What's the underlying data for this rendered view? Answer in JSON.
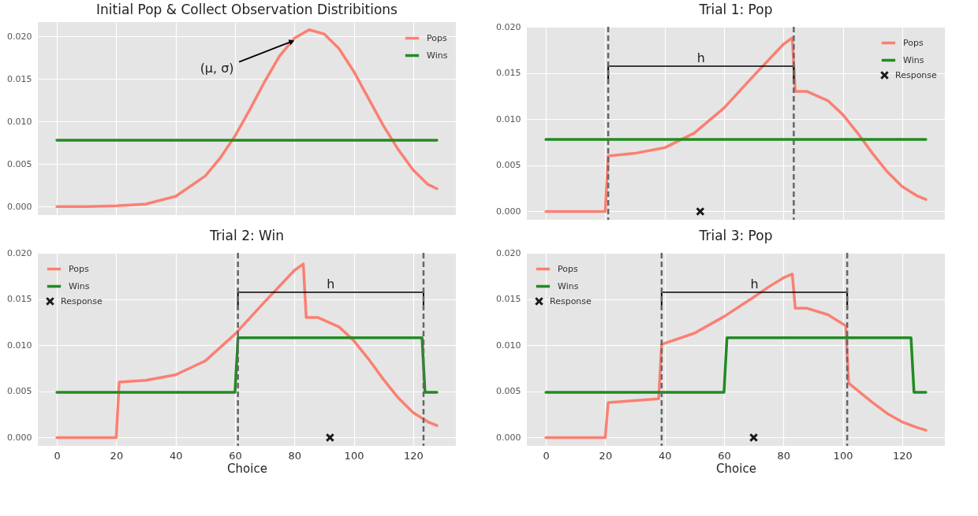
{
  "chart_data": [
    {
      "type": "line",
      "title": "Initial Pop & Collect Observation Distribitions",
      "xlim": [
        -6.4,
        134.4
      ],
      "xticks": [
        0,
        20,
        40,
        60,
        80,
        100,
        120
      ],
      "ylim": [
        -0.001,
        0.0217
      ],
      "yticks": [
        {
          "value": 0,
          "label": "0.000"
        },
        {
          "value": 0.005,
          "label": "0.005"
        },
        {
          "value": 0.01,
          "label": "0.010"
        },
        {
          "value": 0.015,
          "label": "0.015"
        },
        {
          "value": 0.02,
          "label": "0.020"
        }
      ],
      "tick_labels": "y",
      "grid": true,
      "legend": "top right",
      "series": [
        {
          "name": "Pops",
          "color": "#fa8072",
          "x": [
            0,
            10,
            20,
            30,
            40,
            50,
            55,
            60,
            65,
            70,
            75,
            80,
            85,
            90,
            95,
            100,
            105,
            110,
            115,
            120,
            125,
            128
          ],
          "values": [
            0.0,
            0.0,
            0.0001,
            0.0003,
            0.0012,
            0.0036,
            0.0057,
            0.0083,
            0.0114,
            0.0147,
            0.0177,
            0.0198,
            0.0208,
            0.0203,
            0.0186,
            0.0159,
            0.0127,
            0.0095,
            0.0067,
            0.0043,
            0.0026,
            0.0021
          ]
        },
        {
          "name": "Wins",
          "color": "#228b22",
          "x": [
            0,
            128
          ],
          "values": [
            0.0078,
            0.0078
          ]
        }
      ],
      "annotations": [
        {
          "text": "(μ, σ)",
          "x": 80.5,
          "y": 0.0196
        }
      ]
    },
    {
      "type": "line",
      "title": "Trial 1: Pop",
      "xlim": [
        -6.4,
        134.4
      ],
      "xticks": [
        0,
        20,
        40,
        60,
        80,
        100,
        120
      ],
      "ylim": [
        -0.0009,
        0.02
      ],
      "yticks": [
        {
          "value": 0,
          "label": "0.000"
        },
        {
          "value": 0.005,
          "label": "0.005"
        },
        {
          "value": 0.01,
          "label": "0.010"
        },
        {
          "value": 0.015,
          "label": "0.015"
        },
        {
          "value": 0.02,
          "label": "0.020"
        }
      ],
      "tick_labels": "y",
      "grid": true,
      "legend": "top right",
      "series": [
        {
          "name": "Pops",
          "color": "#fa8072",
          "x": [
            0,
            20,
            21,
            30,
            40,
            50,
            60,
            70,
            75,
            80,
            83,
            84,
            88,
            95,
            100,
            105,
            110,
            115,
            120,
            125,
            128
          ],
          "values": [
            0.0,
            0.0,
            0.006,
            0.0063,
            0.0069,
            0.0085,
            0.0112,
            0.0147,
            0.0164,
            0.0181,
            0.0188,
            0.013,
            0.013,
            0.012,
            0.0105,
            0.0085,
            0.0063,
            0.0043,
            0.0027,
            0.0017,
            0.0013
          ]
        },
        {
          "name": "Wins",
          "color": "#228b22",
          "x": [
            0,
            128
          ],
          "values": [
            0.0078,
            0.0078
          ]
        },
        {
          "name": "Response",
          "type": "scatter",
          "marker": "cross",
          "color": "#1a1a1a",
          "x": [
            52
          ],
          "values": [
            0.0
          ]
        }
      ],
      "ref_lines": [
        {
          "axis": "x",
          "value": 21,
          "color": "#666666",
          "line_style": "dashed"
        },
        {
          "axis": "x",
          "value": 83.5,
          "color": "#666666",
          "line_style": "dashed"
        }
      ],
      "annotations": [
        "h"
      ]
    },
    {
      "type": "line",
      "title": "Trial 2: Win",
      "xlabel": "Choice",
      "xlim": [
        -6.4,
        134.4
      ],
      "xticks": [
        0,
        20,
        40,
        60,
        80,
        100,
        120
      ],
      "ylim": [
        -0.0009,
        0.02
      ],
      "yticks": [
        {
          "value": 0,
          "label": "0.000"
        },
        {
          "value": 0.005,
          "label": "0.005"
        },
        {
          "value": 0.01,
          "label": "0.010"
        },
        {
          "value": 0.015,
          "label": "0.015"
        },
        {
          "value": 0.02,
          "label": "0.020"
        }
      ],
      "grid": true,
      "legend": "top left",
      "series": [
        {
          "name": "Pops",
          "color": "#fa8072",
          "x": [
            0,
            20,
            21,
            30,
            40,
            50,
            60,
            70,
            75,
            80,
            83,
            84,
            88,
            95,
            100,
            105,
            110,
            115,
            120,
            125,
            128
          ],
          "values": [
            0.0,
            0.0,
            0.006,
            0.0062,
            0.0068,
            0.0083,
            0.0112,
            0.0147,
            0.0164,
            0.0181,
            0.0188,
            0.013,
            0.013,
            0.012,
            0.0105,
            0.0085,
            0.0063,
            0.0043,
            0.0027,
            0.0017,
            0.0013
          ]
        },
        {
          "name": "Wins",
          "color": "#228b22",
          "x": [
            0,
            60,
            61,
            123,
            124,
            128
          ],
          "values": [
            0.0049,
            0.0049,
            0.0108,
            0.0108,
            0.0049,
            0.0049
          ]
        },
        {
          "name": "Response",
          "type": "scatter",
          "marker": "cross",
          "color": "#1a1a1a",
          "x": [
            92
          ],
          "values": [
            0.0
          ]
        }
      ],
      "ref_lines": [
        {
          "axis": "x",
          "value": 61,
          "color": "#666666",
          "line_style": "dashed"
        },
        {
          "axis": "x",
          "value": 123.5,
          "color": "#666666",
          "line_style": "dashed"
        }
      ],
      "annotations": [
        "h"
      ]
    },
    {
      "type": "line",
      "title": "Trial 3: Pop",
      "xlabel": "Choice",
      "xlim": [
        -6.4,
        134.4
      ],
      "xticks": [
        0,
        20,
        40,
        60,
        80,
        100,
        120
      ],
      "ylim": [
        -0.0009,
        0.02
      ],
      "yticks": [
        {
          "value": 0,
          "label": "0.000"
        },
        {
          "value": 0.005,
          "label": "0.005"
        },
        {
          "value": 0.01,
          "label": "0.010"
        },
        {
          "value": 0.015,
          "label": "0.015"
        },
        {
          "value": 0.02,
          "label": "0.020"
        }
      ],
      "grid": true,
      "legend": "top left",
      "series": [
        {
          "name": "Pops",
          "color": "#fa8072",
          "x": [
            0,
            20,
            21,
            38,
            39,
            50,
            60,
            70,
            75,
            80,
            83,
            84,
            88,
            95,
            101,
            102,
            110,
            115,
            120,
            125,
            128
          ],
          "values": [
            0.0,
            0.0,
            0.0038,
            0.0042,
            0.0101,
            0.0113,
            0.0131,
            0.0152,
            0.0163,
            0.0173,
            0.0177,
            0.014,
            0.014,
            0.0133,
            0.0121,
            0.0059,
            0.0038,
            0.0026,
            0.0017,
            0.0011,
            0.0008
          ]
        },
        {
          "name": "Wins",
          "color": "#228b22",
          "x": [
            0,
            60,
            61,
            123,
            124,
            128
          ],
          "values": [
            0.0049,
            0.0049,
            0.0108,
            0.0108,
            0.0049,
            0.0049
          ]
        },
        {
          "name": "Response",
          "type": "scatter",
          "marker": "cross",
          "color": "#1a1a1a",
          "x": [
            70
          ],
          "values": [
            0.0
          ]
        }
      ],
      "ref_lines": [
        {
          "axis": "x",
          "value": 39,
          "color": "#666666",
          "line_style": "dashed"
        },
        {
          "axis": "x",
          "value": 101.5,
          "color": "#666666",
          "line_style": "dashed"
        }
      ],
      "annotations": [
        "h"
      ]
    }
  ]
}
